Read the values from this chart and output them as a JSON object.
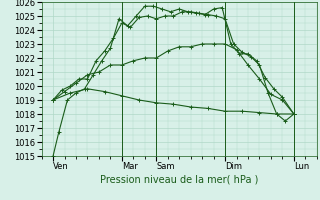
{
  "xlabel": "Pression niveau de la mer( hPa )",
  "background_color": "#d8f0e8",
  "grid_color": "#b0d8c8",
  "line_color": "#1a5c1a",
  "ylim": [
    1015,
    1026
  ],
  "ytick_values": [
    1015,
    1016,
    1017,
    1018,
    1019,
    1020,
    1021,
    1022,
    1023,
    1024,
    1025,
    1026
  ],
  "xlim": [
    0,
    192
  ],
  "day_labels": [
    "Ven",
    "Mar",
    "Sam",
    "Dim",
    "Lun"
  ],
  "day_positions": [
    8,
    56,
    80,
    128,
    176
  ],
  "vline_positions": [
    56,
    80,
    128,
    176
  ],
  "series": [
    {
      "x": [
        8,
        12,
        18,
        24,
        30,
        36,
        42,
        48,
        54,
        60,
        66,
        72,
        78,
        84,
        90,
        96,
        102,
        108,
        114,
        120,
        126,
        132,
        138,
        144,
        150,
        156,
        162,
        168,
        176
      ],
      "y": [
        1015.0,
        1016.7,
        1019.0,
        1019.5,
        1019.8,
        1020.8,
        1021.8,
        1022.7,
        1024.8,
        1024.3,
        1025.0,
        1025.7,
        1025.7,
        1025.5,
        1025.3,
        1025.5,
        1025.3,
        1025.2,
        1025.1,
        1025.5,
        1025.6,
        1023.0,
        1022.3,
        1022.3,
        1021.8,
        1020.6,
        1019.8,
        1019.2,
        1018.0
      ]
    },
    {
      "x": [
        8,
        14,
        20,
        26,
        32,
        38,
        44,
        50,
        56,
        62,
        68,
        74,
        80,
        86,
        92,
        98,
        104,
        110,
        116,
        122,
        128,
        134,
        140,
        146,
        152,
        158,
        164,
        170,
        176
      ],
      "y": [
        1019.0,
        1019.7,
        1020.0,
        1020.5,
        1020.5,
        1021.8,
        1022.5,
        1023.4,
        1024.5,
        1024.2,
        1024.9,
        1025.0,
        1024.8,
        1025.0,
        1025.0,
        1025.3,
        1025.3,
        1025.2,
        1025.1,
        1025.0,
        1024.8,
        1023.0,
        1022.4,
        1022.1,
        1021.5,
        1019.5,
        1018.0,
        1017.5,
        1018.0
      ]
    },
    {
      "x": [
        8,
        16,
        24,
        32,
        40,
        48,
        56,
        64,
        72,
        80,
        88,
        96,
        104,
        112,
        120,
        128,
        136,
        144,
        152,
        160,
        168,
        176
      ],
      "y": [
        1019.0,
        1019.6,
        1020.2,
        1020.8,
        1021.0,
        1021.5,
        1021.5,
        1021.8,
        1022.0,
        1022.0,
        1022.5,
        1022.8,
        1022.8,
        1023.0,
        1023.0,
        1023.0,
        1022.6,
        1021.5,
        1020.5,
        1019.4,
        1019.0,
        1018.0
      ]
    },
    {
      "x": [
        8,
        20,
        32,
        44,
        56,
        68,
        80,
        92,
        104,
        116,
        128,
        140,
        152,
        164,
        176
      ],
      "y": [
        1019.0,
        1019.5,
        1019.8,
        1019.6,
        1019.3,
        1019.0,
        1018.8,
        1018.7,
        1018.5,
        1018.4,
        1018.2,
        1018.2,
        1018.1,
        1018.0,
        1018.0
      ]
    }
  ],
  "marker": "+",
  "markersize": 3,
  "linewidth": 0.8,
  "xlabel_fontsize": 7,
  "tick_fontsize": 6
}
